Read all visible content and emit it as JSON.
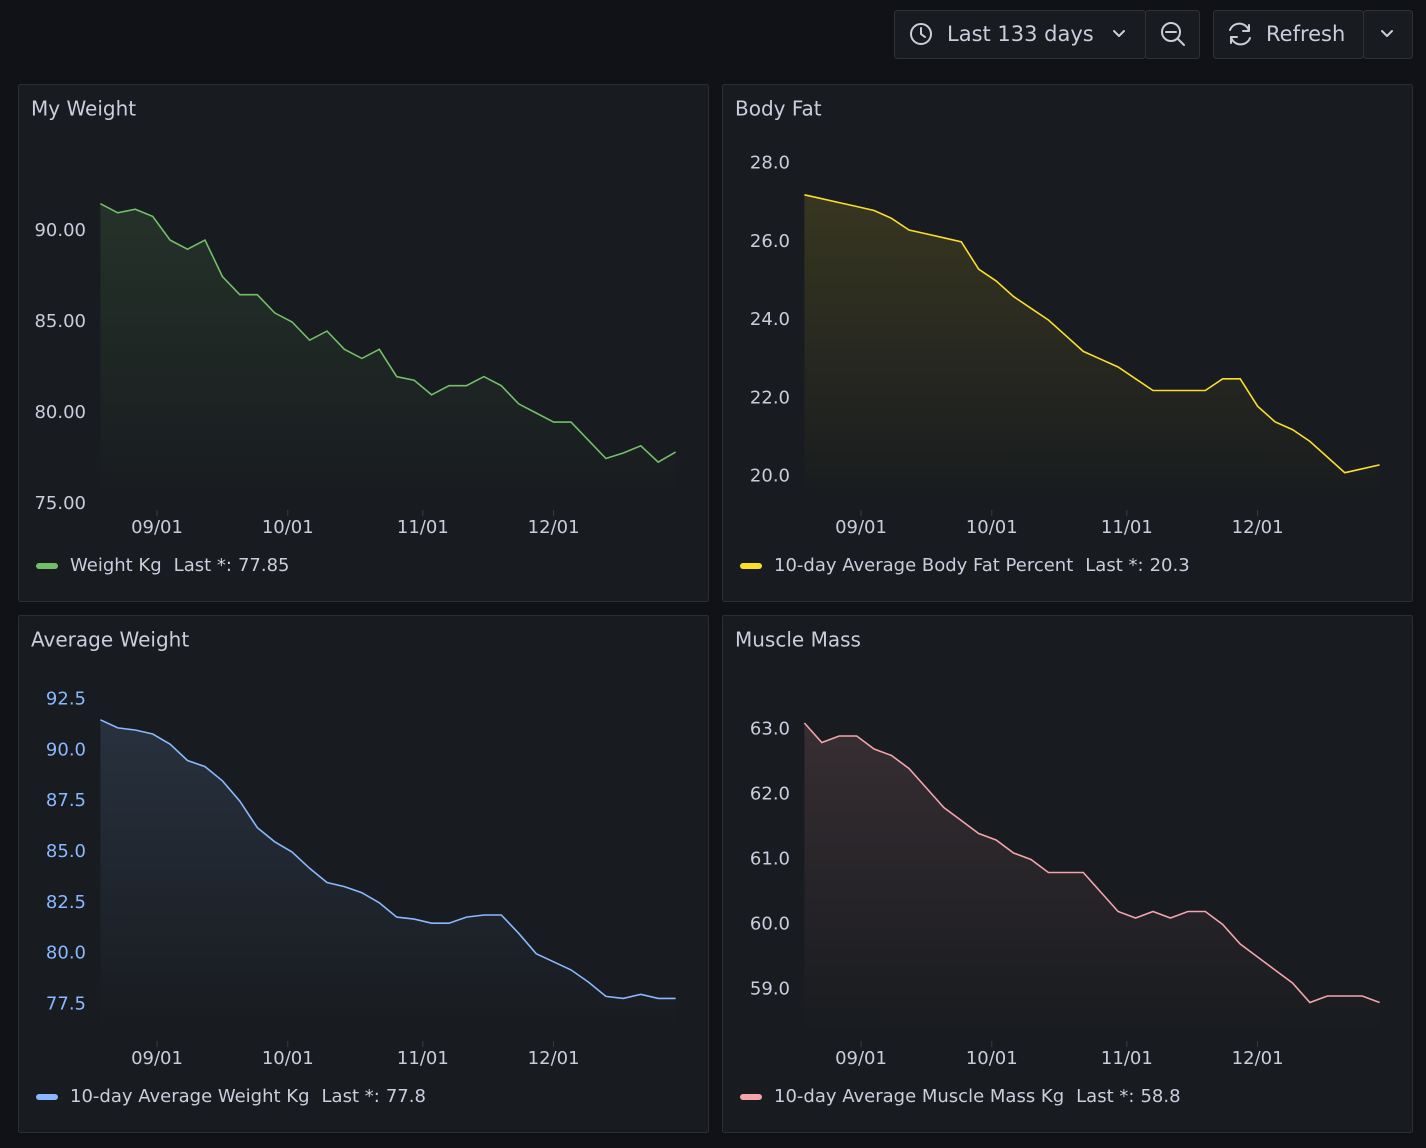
{
  "toolbar": {
    "time_range": "Last 133 days",
    "refresh": "Refresh"
  },
  "chart_data": [
    {
      "type": "line",
      "title": "My Weight",
      "x": [
        "08/19",
        "08/23",
        "08/27",
        "08/31",
        "09/04",
        "09/08",
        "09/12",
        "09/16",
        "09/20",
        "09/24",
        "09/28",
        "10/02",
        "10/06",
        "10/10",
        "10/14",
        "10/18",
        "10/22",
        "10/26",
        "10/30",
        "11/03",
        "11/07",
        "11/11",
        "11/15",
        "11/19",
        "11/23",
        "11/27",
        "12/01",
        "12/05",
        "12/09",
        "12/13",
        "12/17",
        "12/21",
        "12/25",
        "12/29"
      ],
      "series": [
        {
          "name": "Weight Kg",
          "color": "#73bf69",
          "values": [
            91.5,
            91,
            91.2,
            90.8,
            89.5,
            89,
            89.5,
            87.5,
            86.5,
            86.5,
            85.5,
            85,
            84,
            84.5,
            83.5,
            83,
            83.5,
            82,
            81.8,
            81,
            81.5,
            81.5,
            82,
            81.5,
            80.5,
            80,
            79.5,
            79.5,
            78.5,
            77.5,
            77.8,
            78.2,
            77.3,
            77.85
          ]
        }
      ],
      "legend_stat": "Last *:",
      "xlim": [
        "08/18",
        "12/30"
      ],
      "xticks": [
        "09/01",
        "10/01",
        "11/01",
        "12/01"
      ],
      "ylim": [
        75,
        95
      ],
      "yticks": [
        {
          "value": 75,
          "label": "75.00"
        },
        {
          "value": 80,
          "label": "80.00"
        },
        {
          "value": 85,
          "label": "85.00"
        },
        {
          "value": 90,
          "label": "90.00"
        }
      ],
      "ytick_color": "#ccccdc"
    },
    {
      "type": "line",
      "title": "Body Fat",
      "x": [
        "08/19",
        "08/23",
        "08/27",
        "08/31",
        "09/04",
        "09/08",
        "09/12",
        "09/16",
        "09/20",
        "09/24",
        "09/28",
        "10/02",
        "10/06",
        "10/10",
        "10/14",
        "10/18",
        "10/22",
        "10/26",
        "10/30",
        "11/03",
        "11/07",
        "11/11",
        "11/15",
        "11/19",
        "11/23",
        "11/27",
        "12/01",
        "12/05",
        "12/09",
        "12/13",
        "12/17",
        "12/21",
        "12/25",
        "12/29"
      ],
      "series": [
        {
          "name": "10-day Average Body Fat Percent",
          "color": "#fade2a",
          "values": [
            27.2,
            27.1,
            27,
            26.9,
            26.8,
            26.6,
            26.3,
            26.2,
            26.1,
            26,
            25.3,
            25,
            24.6,
            24.3,
            24,
            23.6,
            23.2,
            23,
            22.8,
            22.5,
            22.2,
            22.2,
            22.2,
            22.2,
            22.5,
            22.5,
            21.8,
            21.4,
            21.2,
            20.9,
            20.5,
            20.1,
            20.2,
            20.3
          ]
        }
      ],
      "legend_stat": "Last *:",
      "xlim": [
        "08/18",
        "12/30"
      ],
      "xticks": [
        "09/01",
        "10/01",
        "11/01",
        "12/01"
      ],
      "ylim": [
        19.3,
        28.6
      ],
      "yticks": [
        {
          "value": 20,
          "label": "20.0"
        },
        {
          "value": 22,
          "label": "22.0"
        },
        {
          "value": 24,
          "label": "24.0"
        },
        {
          "value": 26,
          "label": "26.0"
        },
        {
          "value": 28,
          "label": "28.0"
        }
      ],
      "ytick_color": "#ccccdc"
    },
    {
      "type": "line",
      "title": "Average Weight",
      "x": [
        "08/19",
        "08/23",
        "08/27",
        "08/31",
        "09/04",
        "09/08",
        "09/12",
        "09/16",
        "09/20",
        "09/24",
        "09/28",
        "10/02",
        "10/06",
        "10/10",
        "10/14",
        "10/18",
        "10/22",
        "10/26",
        "10/30",
        "11/03",
        "11/07",
        "11/11",
        "11/15",
        "11/19",
        "11/23",
        "11/27",
        "12/01",
        "12/05",
        "12/09",
        "12/13",
        "12/17",
        "12/21",
        "12/25",
        "12/29"
      ],
      "series": [
        {
          "name": "10-day Average Weight Kg",
          "color": "#8ab8ff",
          "values": [
            91.5,
            91.1,
            91,
            90.8,
            90.3,
            89.5,
            89.2,
            88.5,
            87.5,
            86.2,
            85.5,
            85,
            84.2,
            83.5,
            83.3,
            83,
            82.5,
            81.8,
            81.7,
            81.5,
            81.5,
            81.8,
            81.9,
            81.9,
            81,
            80,
            79.6,
            79.2,
            78.6,
            77.9,
            77.8,
            78,
            77.8,
            77.8
          ]
        }
      ],
      "legend_stat": "Last *:",
      "xlim": [
        "08/18",
        "12/30"
      ],
      "xticks": [
        "09/01",
        "10/01",
        "11/01",
        "12/01"
      ],
      "ylim": [
        76,
        93.9
      ],
      "yticks": [
        {
          "value": 77.5,
          "label": "77.5"
        },
        {
          "value": 80,
          "label": "80.0"
        },
        {
          "value": 82.5,
          "label": "82.5"
        },
        {
          "value": 85,
          "label": "85.0"
        },
        {
          "value": 87.5,
          "label": "87.5"
        },
        {
          "value": 90,
          "label": "90.0"
        },
        {
          "value": 92.5,
          "label": "92.5"
        }
      ],
      "ytick_color": "#8ab8ff"
    },
    {
      "type": "line",
      "title": "Muscle Mass",
      "x": [
        "08/19",
        "08/23",
        "08/27",
        "08/31",
        "09/04",
        "09/08",
        "09/12",
        "09/16",
        "09/20",
        "09/24",
        "09/28",
        "10/02",
        "10/06",
        "10/10",
        "10/14",
        "10/18",
        "10/22",
        "10/26",
        "10/30",
        "11/03",
        "11/07",
        "11/11",
        "11/15",
        "11/19",
        "11/23",
        "11/27",
        "12/01",
        "12/05",
        "12/09",
        "12/13",
        "12/17",
        "12/21",
        "12/25",
        "12/29"
      ],
      "series": [
        {
          "name": "10-day Average Muscle Mass Kg",
          "color": "#f4a4ab",
          "values": [
            63.1,
            62.8,
            62.9,
            62.9,
            62.7,
            62.6,
            62.4,
            62.1,
            61.8,
            61.6,
            61.4,
            61.3,
            61.1,
            61,
            60.8,
            60.8,
            60.8,
            60.5,
            60.2,
            60.1,
            60.2,
            60.1,
            60.2,
            60.2,
            60,
            59.7,
            59.5,
            59.3,
            59.1,
            58.8,
            58.9,
            58.9,
            58.9,
            58.8
          ]
        }
      ],
      "legend_stat": "Last *:",
      "xlim": [
        "08/18",
        "12/30"
      ],
      "xticks": [
        "09/01",
        "10/01",
        "11/01",
        "12/01"
      ],
      "ylim": [
        58.3,
        63.9
      ],
      "yticks": [
        {
          "value": 59,
          "label": "59.0"
        },
        {
          "value": 60,
          "label": "60.0"
        },
        {
          "value": 61,
          "label": "61.0"
        },
        {
          "value": 62,
          "label": "62.0"
        },
        {
          "value": 63,
          "label": "63.0"
        }
      ],
      "ytick_color": "#ccccdc"
    }
  ]
}
